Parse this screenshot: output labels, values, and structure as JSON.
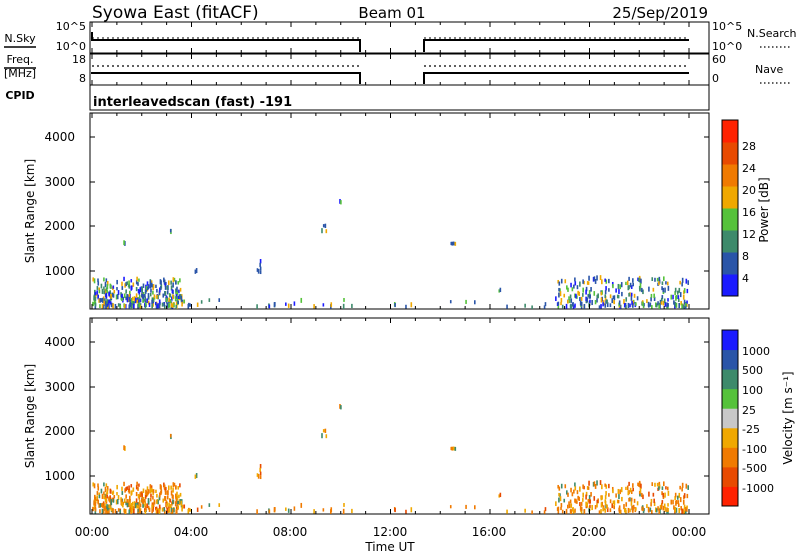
{
  "header": {
    "station": "Syowa East (fitACF)",
    "beam": "Beam 01",
    "date": "25/Sep/2019"
  },
  "colors": {
    "power_scale": [
      "#1b1bff",
      "#2a55a8",
      "#3d8a6b",
      "#55c23a",
      "#f0a800",
      "#f07a00",
      "#e84a00",
      "#ff2200"
    ],
    "velocity_scale": [
      "#ff2200",
      "#e84a00",
      "#f07a00",
      "#f0a800",
      "#c8c8c8",
      "#55c23a",
      "#3d8a6b",
      "#2a55a8",
      "#1b1bff"
    ]
  },
  "chart_data": [
    {
      "type": "line",
      "panel": "nsky-nsearch",
      "left_label": "N.Sky",
      "right_label": "N.Search",
      "left_ticks": [
        "10^5",
        "10^0"
      ],
      "right_ticks": [
        "10^5",
        "10^0"
      ],
      "x_range_hours": [
        0,
        24
      ],
      "series": [
        {
          "name": "N.Sky",
          "segments": [
            [
              0,
              10.8
            ],
            [
              13.2,
              24
            ]
          ]
        },
        {
          "name": "N.Search",
          "segments": [
            [
              0,
              10.8
            ],
            [
              13.2,
              24
            ]
          ]
        }
      ]
    },
    {
      "type": "line",
      "panel": "freq-nave",
      "left_label": "Freq. [MHz]",
      "right_label": "Nave",
      "left_ticks": [
        "18",
        "8"
      ],
      "right_ticks": [
        "60",
        "0"
      ],
      "series": [
        {
          "name": "Freq.",
          "segments": [
            [
              0,
              10.8
            ],
            [
              13.2,
              24
            ]
          ]
        },
        {
          "name": "Nave",
          "segments": [
            [
              0,
              10.8
            ],
            [
              13.2,
              24
            ]
          ]
        }
      ]
    },
    {
      "type": "table",
      "panel": "cpid",
      "label": "CPID",
      "value": "interleavedscan (fast) -191"
    },
    {
      "type": "heatmap",
      "panel": "power",
      "ylabel": "Slant Range [km]",
      "yticks": [
        "4000",
        "3000",
        "2000",
        "1000"
      ],
      "ylim": [
        180,
        4500
      ],
      "xlim": [
        0,
        24
      ],
      "colorbar_label": "Power [dB]",
      "colorbar_ticks": [
        "28",
        "24",
        "20",
        "16",
        "12",
        "8",
        "4"
      ],
      "clim": [
        0,
        32
      ]
    },
    {
      "type": "heatmap",
      "panel": "velocity",
      "ylabel": "Slant Range [km]",
      "yticks": [
        "4000",
        "3000",
        "2000",
        "1000"
      ],
      "ylim": [
        180,
        4500
      ],
      "xlim": [
        0,
        24
      ],
      "xlabel": "Time UT",
      "xticks": [
        "00:00",
        "04:00",
        "08:00",
        "12:00",
        "16:00",
        "20:00",
        "00:00"
      ],
      "colorbar_label": "Velocity [m s⁻¹]",
      "colorbar_ticks": [
        "1000",
        "500",
        "100",
        "25",
        "-25",
        "-100",
        "-500",
        "-1000"
      ]
    }
  ]
}
